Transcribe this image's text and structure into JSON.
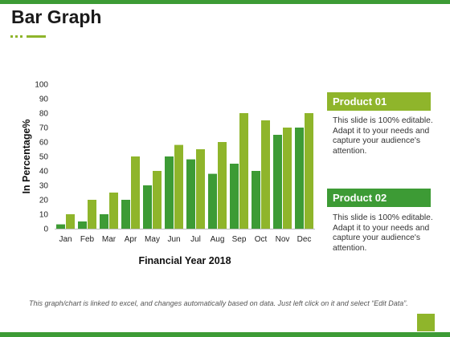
{
  "slide": {
    "title": "Bar Graph",
    "footnote": "This graph/chart is linked to excel, and changes automatically based on data. Just left click on it and select “Edit Data”."
  },
  "legend": {
    "product1": {
      "label": "Product 01",
      "text": "This slide is 100% editable. Adapt it to your needs and capture your audience's attention."
    },
    "product2": {
      "label": "Product 02",
      "text": "This slide is 100% editable. Adapt it to your needs and capture your audience's attention."
    }
  },
  "colors": {
    "accent_dark": "#3d9b35",
    "accent_light": "#8fb52b"
  },
  "chart_data": {
    "type": "bar",
    "categories": [
      "Jan",
      "Feb",
      "Mar",
      "Apr",
      "May",
      "Jun",
      "Jul",
      "Aug",
      "Sep",
      "Oct",
      "Nov",
      "Dec"
    ],
    "series": [
      {
        "name": "Product 02",
        "color": "#3d9b35",
        "values": [
          3,
          5,
          10,
          20,
          30,
          50,
          48,
          38,
          45,
          40,
          65,
          70
        ]
      },
      {
        "name": "Product 01",
        "color": "#8fb52b",
        "values": [
          10,
          20,
          25,
          50,
          40,
          58,
          55,
          60,
          80,
          75,
          70,
          80
        ]
      }
    ],
    "xlabel": "Financial Year 2018",
    "ylabel": "In Percentage%",
    "ylim": [
      0,
      100
    ],
    "yticks": [
      0,
      10,
      20,
      30,
      40,
      50,
      60,
      70,
      80,
      90,
      100
    ],
    "grid": false,
    "legend_position": "right"
  }
}
